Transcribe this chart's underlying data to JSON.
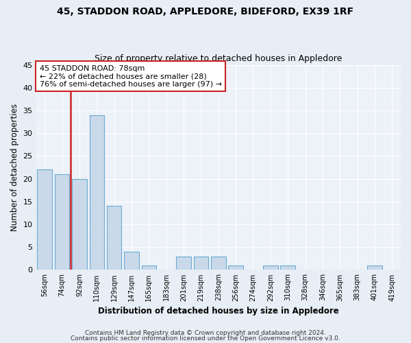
{
  "title1": "45, STADDON ROAD, APPLEDORE, BIDEFORD, EX39 1RF",
  "title2": "Size of property relative to detached houses in Appledore",
  "xlabel": "Distribution of detached houses by size in Appledore",
  "ylabel": "Number of detached properties",
  "categories": [
    "56sqm",
    "74sqm",
    "92sqm",
    "110sqm",
    "129sqm",
    "147sqm",
    "165sqm",
    "183sqm",
    "201sqm",
    "219sqm",
    "238sqm",
    "256sqm",
    "274sqm",
    "292sqm",
    "310sqm",
    "328sqm",
    "346sqm",
    "365sqm",
    "383sqm",
    "401sqm",
    "419sqm"
  ],
  "values": [
    22,
    21,
    20,
    34,
    14,
    4,
    1,
    0,
    3,
    3,
    3,
    1,
    0,
    1,
    1,
    0,
    0,
    0,
    0,
    1,
    0
  ],
  "bar_color": "#c9d9ea",
  "bar_edge_color": "#6aaad4",
  "vline_x": 1.5,
  "annotation_title": "45 STADDON ROAD: 78sqm",
  "annotation_line1": "← 22% of detached houses are smaller (28)",
  "annotation_line2": "76% of semi-detached houses are larger (97) →",
  "ylim": [
    0,
    45
  ],
  "yticks": [
    0,
    5,
    10,
    15,
    20,
    25,
    30,
    35,
    40,
    45
  ],
  "footer1": "Contains HM Land Registry data © Crown copyright and database right 2024.",
  "footer2": "Contains public sector information licensed under the Open Government Licence v3.0.",
  "bg_color": "#e8eef5",
  "plot_bg_color": "#edf2f8"
}
